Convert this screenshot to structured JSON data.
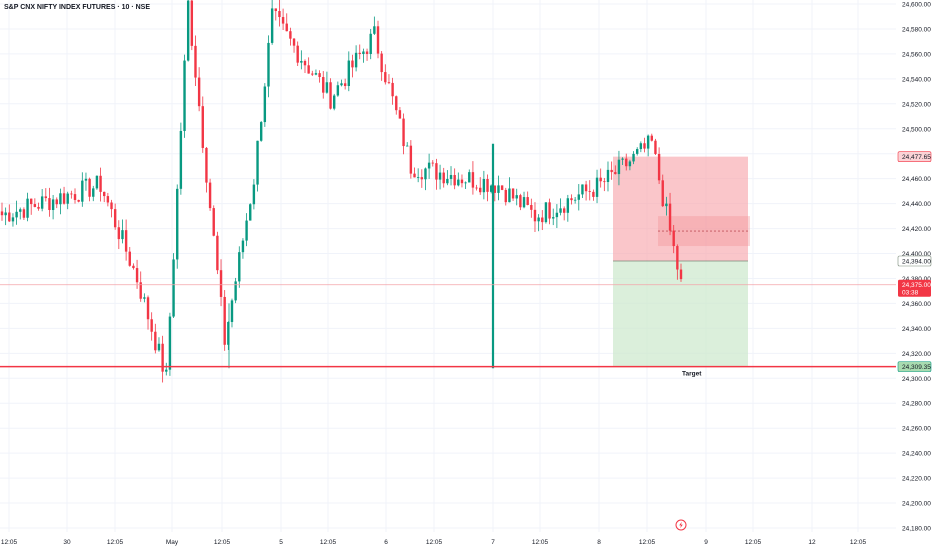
{
  "header": {
    "symbol_title": "S&P CNX NIFTY INDEX FUTURES · 10 · NSE"
  },
  "colors": {
    "up": "#089981",
    "down": "#f23645",
    "grid": "#f0f3fa",
    "stop_zone": "#f7a8ae",
    "target_zone": "#cfe9cf",
    "target_line": "#f23645"
  },
  "price_axis": {
    "labels": [
      "24,600.00",
      "24,580.00",
      "24,560.00",
      "24,540.00",
      "24,520.00",
      "24,500.00",
      "24,480.00",
      "24,460.00",
      "24,440.00",
      "24,420.00",
      "24,400.00",
      "24,380.00",
      "24,360.00",
      "24,340.00",
      "24,320.00",
      "24,300.00",
      "24,280.00",
      "24,260.00",
      "24,240.00",
      "24,220.00",
      "24,200.00",
      "24,180.00"
    ],
    "values": [
      24600,
      24580,
      24560,
      24540,
      24520,
      24500,
      24480,
      24460,
      24440,
      24420,
      24400,
      24380,
      24360,
      24340,
      24320,
      24300,
      24280,
      24260,
      24240,
      24220,
      24200,
      24180
    ]
  },
  "time_axis": {
    "labels": [
      "12:05",
      "30",
      "12:05",
      "May",
      "12:05",
      "5",
      "12:05",
      "6",
      "12:05",
      "7",
      "12:05",
      "8",
      "12:05",
      "9",
      "12:05",
      "12",
      "12:05"
    ]
  },
  "price_tags": {
    "stop": {
      "label": "24,477.65",
      "value": 24477.65
    },
    "entry": {
      "label": "24,394.00",
      "value": 24394
    },
    "current": {
      "label": "24,375.00",
      "countdown": "03:38",
      "value": 24375
    },
    "target": {
      "label": "24,309.35",
      "value": 24309.35
    }
  },
  "position_tool": {
    "target_label": "Target",
    "stop_value": 24477.65,
    "entry_value": 24394,
    "target_value": 24309.35
  },
  "chart_data": {
    "type": "candlestick",
    "title": "S&P CNX NIFTY INDEX FUTURES · 10 · NSE",
    "ylim": [
      24176,
      24604
    ],
    "annotations": [
      "Target"
    ],
    "segments": [
      {
        "from": 24430,
        "to": 24455,
        "count": 28
      },
      {
        "from": 24455,
        "to": 24380,
        "count": 10
      },
      {
        "from": 24380,
        "to": 24300,
        "count": 8
      },
      {
        "from": 24300,
        "to": 24600,
        "count": 6
      },
      {
        "from": 24600,
        "to": 24330,
        "count": 10
      },
      {
        "from": 24330,
        "to": 24460,
        "count": 8
      },
      {
        "from": 24460,
        "to": 24590,
        "count": 5
      },
      {
        "from": 24590,
        "to": 24525,
        "count": 16
      },
      {
        "from": 24525,
        "to": 24575,
        "count": 12
      },
      {
        "from": 24575,
        "to": 24470,
        "count": 10
      },
      {
        "from": 24470,
        "to": 24455,
        "count": 24
      },
      {
        "from": 24455,
        "to": 24430,
        "count": 10
      },
      {
        "from": 24430,
        "to": 24455,
        "count": 18
      },
      {
        "from": 24455,
        "to": 24488,
        "count": 14
      },
      {
        "from": 24488,
        "to": 24375,
        "count": 8
      }
    ]
  }
}
